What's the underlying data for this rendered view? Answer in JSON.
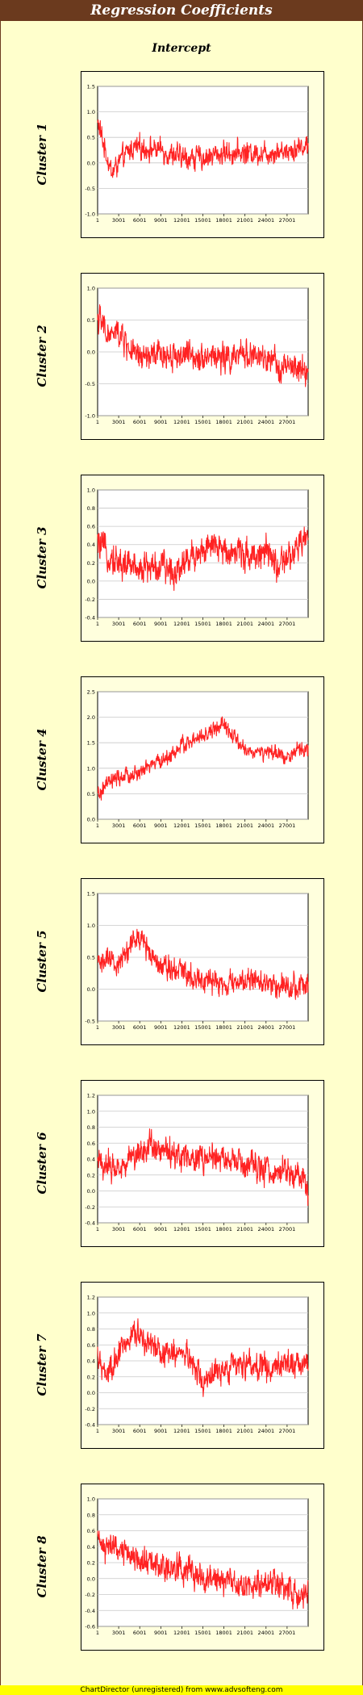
{
  "page": {
    "title": "Regression Coefficients",
    "subtitle": "Intercept",
    "footer": "ChartDirector (unregistered) from www.advsofteng.com"
  },
  "colors": {
    "line": "#ff2222",
    "plot_bg": "#ffffff",
    "panel_bg": "#ffffdd",
    "grid": "#c8c8c8",
    "title_bar": "#6b3a1e",
    "page_bg": "#ffffcc",
    "footer_bg": "#ffff00"
  },
  "x_tick_labels": [
    "1",
    "3001",
    "6001",
    "9001",
    "12001",
    "15001",
    "18001",
    "21001",
    "24001",
    "27001"
  ],
  "chart_data": [
    {
      "type": "line",
      "label": "Cluster 1",
      "x_range": [
        1,
        30000
      ],
      "ylim": [
        -1.0,
        1.5
      ],
      "y_ticks": [
        "1.5",
        "1.0",
        "0.5",
        "0.0",
        "-0.5",
        "-1.0"
      ],
      "grid": true,
      "series": [
        {
          "x": [
            1,
            1000,
            2000,
            3000,
            5000,
            6000,
            9000,
            12000,
            15000,
            18000,
            21000,
            24000,
            27000,
            30000
          ],
          "y": [
            0.8,
            0.3,
            -0.2,
            0.0,
            0.3,
            0.3,
            0.25,
            0.1,
            0.1,
            0.2,
            0.2,
            0.2,
            0.25,
            0.35
          ],
          "noise": 0.13
        }
      ]
    },
    {
      "type": "line",
      "label": "Cluster 2",
      "x_range": [
        1,
        30000
      ],
      "ylim": [
        -1.0,
        1.0
      ],
      "y_ticks": [
        "1.0",
        "0.5",
        "0.0",
        "-0.5",
        "-1.0"
      ],
      "grid": true,
      "series": [
        {
          "x": [
            1,
            1500,
            3000,
            4000,
            5500,
            9000,
            12000,
            15000,
            18000,
            20000,
            21000,
            24000,
            27000,
            30000
          ],
          "y": [
            0.55,
            0.25,
            0.3,
            0.15,
            -0.1,
            -0.05,
            -0.05,
            -0.05,
            -0.1,
            -0.1,
            0.0,
            -0.15,
            -0.25,
            -0.3
          ],
          "noise": 0.13
        }
      ]
    },
    {
      "type": "line",
      "label": "Cluster 3",
      "x_range": [
        1,
        30000
      ],
      "ylim": [
        -0.4,
        1.0
      ],
      "y_ticks": [
        "1.0",
        "0.8",
        "0.6",
        "0.4",
        "0.2",
        "0.0",
        "-0.2",
        "-0.4"
      ],
      "grid": true,
      "series": [
        {
          "x": [
            1,
            3000,
            6000,
            9000,
            11000,
            12000,
            15000,
            18000,
            21000,
            24000,
            26000,
            28000,
            30000
          ],
          "y": [
            0.4,
            0.2,
            0.15,
            0.15,
            0.1,
            0.2,
            0.35,
            0.35,
            0.3,
            0.3,
            0.15,
            0.3,
            0.5
          ],
          "noise": 0.1
        }
      ]
    },
    {
      "type": "line",
      "label": "Cluster 4",
      "x_range": [
        1,
        30000
      ],
      "ylim": [
        0.0,
        2.5
      ],
      "y_ticks": [
        "2.5",
        "2.0",
        "1.5",
        "1.0",
        "0.5",
        "0.0"
      ],
      "grid": true,
      "series": [
        {
          "x": [
            1,
            1500,
            3000,
            6000,
            8000,
            10000,
            12000,
            15000,
            17000,
            18000,
            19000,
            21000,
            24000,
            27000,
            30000
          ],
          "y": [
            0.45,
            0.7,
            0.8,
            0.9,
            1.1,
            1.2,
            1.45,
            1.6,
            1.8,
            1.85,
            1.65,
            1.35,
            1.3,
            1.25,
            1.4
          ],
          "noise": 0.09
        }
      ]
    },
    {
      "type": "line",
      "label": "Cluster 5",
      "x_range": [
        1,
        30000
      ],
      "ylim": [
        -0.5,
        1.5
      ],
      "y_ticks": [
        "1.5",
        "1.0",
        "0.5",
        "0.0",
        "-0.5"
      ],
      "grid": true,
      "series": [
        {
          "x": [
            1,
            3000,
            5000,
            6000,
            9000,
            12000,
            15000,
            18000,
            21000,
            24000,
            27000,
            30000
          ],
          "y": [
            0.45,
            0.4,
            0.75,
            0.8,
            0.4,
            0.3,
            0.15,
            0.05,
            0.15,
            0.1,
            0.05,
            0.05
          ],
          "noise": 0.11
        }
      ]
    },
    {
      "type": "line",
      "label": "Cluster 6",
      "x_range": [
        1,
        30000
      ],
      "ylim": [
        -0.4,
        1.2
      ],
      "y_ticks": [
        "1.2",
        "1.0",
        "0.8",
        "0.6",
        "0.4",
        "0.2",
        "0.0",
        "-0.2",
        "-0.4"
      ],
      "grid": true,
      "series": [
        {
          "x": [
            1,
            3000,
            6000,
            8000,
            9000,
            12000,
            15000,
            18000,
            21000,
            24000,
            27000,
            29500,
            30000
          ],
          "y": [
            0.35,
            0.3,
            0.5,
            0.6,
            0.5,
            0.45,
            0.4,
            0.4,
            0.3,
            0.25,
            0.25,
            0.15,
            -0.05
          ],
          "noise": 0.1
        }
      ]
    },
    {
      "type": "line",
      "label": "Cluster 7",
      "x_range": [
        1,
        30000
      ],
      "ylim": [
        -0.4,
        1.2
      ],
      "y_ticks": [
        "1.2",
        "1.0",
        "0.8",
        "0.6",
        "0.4",
        "0.2",
        "0.0",
        "-0.2",
        "-0.4"
      ],
      "grid": true,
      "series": [
        {
          "x": [
            1,
            1500,
            3000,
            5000,
            6000,
            9000,
            12000,
            14000,
            15000,
            18000,
            21000,
            24000,
            27000,
            30000
          ],
          "y": [
            0.4,
            0.2,
            0.45,
            0.75,
            0.7,
            0.5,
            0.5,
            0.35,
            0.15,
            0.3,
            0.35,
            0.3,
            0.4,
            0.35
          ],
          "noise": 0.1
        }
      ]
    },
    {
      "type": "line",
      "label": "Cluster 8",
      "x_range": [
        1,
        30000
      ],
      "ylim": [
        -0.6,
        1.0
      ],
      "y_ticks": [
        "1.0",
        "0.8",
        "0.6",
        "0.4",
        "0.2",
        "0.0",
        "-0.2",
        "-0.4",
        "-0.6"
      ],
      "grid": true,
      "series": [
        {
          "x": [
            1,
            3000,
            6000,
            9000,
            12000,
            15000,
            18000,
            21000,
            24000,
            27000,
            30000
          ],
          "y": [
            0.45,
            0.35,
            0.25,
            0.15,
            0.15,
            0.0,
            -0.05,
            -0.05,
            -0.05,
            -0.15,
            -0.2
          ],
          "noise": 0.1
        }
      ]
    }
  ]
}
